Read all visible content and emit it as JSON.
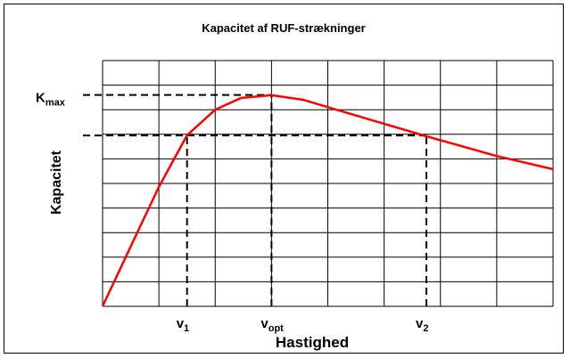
{
  "chart_data": {
    "type": "line",
    "title": "Kapacitet af RUF-strækninger",
    "xlabel": "Hastighed",
    "ylabel": "Kapacitet",
    "x": [
      0,
      0.55,
      1.0,
      1.5,
      2.0,
      2.46,
      3.0,
      3.57,
      4.52,
      5.75,
      6.99,
      8.0
    ],
    "series": [
      {
        "color": "#ff0000",
        "values": [
          0,
          2.68,
          4.86,
          6.96,
          8.0,
          8.48,
          8.59,
          8.4,
          7.75,
          6.92,
          6.12,
          5.58
        ]
      }
    ],
    "xlim": [
      0,
      8
    ],
    "ylim": [
      0,
      10
    ],
    "xticks": [
      0,
      1,
      2,
      3,
      4,
      5,
      6,
      7,
      8
    ],
    "yticks": [
      0,
      1,
      2,
      3,
      4,
      5,
      6,
      7,
      8,
      9,
      10
    ],
    "grid": true,
    "levels": [
      {
        "label": "K",
        "sub": "max",
        "y": 8.6,
        "x_end": 3.0
      },
      {
        "y": 6.95,
        "x_end": 5.75
      }
    ],
    "markers": [
      {
        "label": "v",
        "sub": "1",
        "x": 1.5,
        "y": 6.95
      },
      {
        "label": "v",
        "sub": "opt",
        "x": 3.0,
        "y": 8.6
      },
      {
        "label": "v",
        "sub": "2",
        "x": 5.75,
        "y": 6.95
      }
    ]
  }
}
